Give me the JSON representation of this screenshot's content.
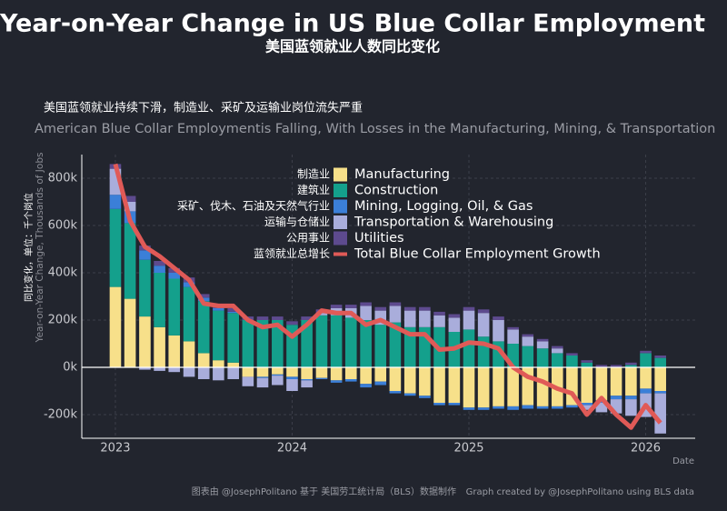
{
  "chart_data": {
    "type": "bar",
    "title": "Year-on-Year Change in US Blue Collar Employment",
    "subtitle": "美国蓝领就业人数同比变化",
    "description_zh": "美国蓝领就业持续下滑，制造业、采矿及运输业岗位流失严重",
    "description": "American Blue Collar Employmentis Falling, With Losses in the Manufacturing, Mining, & Transportation",
    "ylabel": "Year-on-Year Change, Thousands of Jobs",
    "ylabel_zh": "同比变化，单位：千个岗位",
    "xlabel": "Date",
    "footer_zh": "图表由 @JosephPolitano 基于 美国劳工统计局（BLS）数据制作",
    "footer": "Graph created by @JosephPolitano using BLS data",
    "x": [
      2023,
      2023.083,
      2023.167,
      2023.25,
      2023.333,
      2023.417,
      2023.5,
      2023.583,
      2023.667,
      2023.75,
      2023.833,
      2023.917,
      2024,
      2024.083,
      2024.167,
      2024.25,
      2024.333,
      2024.417,
      2024.5,
      2024.583,
      2024.667,
      2024.75,
      2024.833,
      2024.917,
      2025,
      2025.083,
      2025.167,
      2025.25,
      2025.333,
      2025.417,
      2025.5,
      2025.583,
      2025.667,
      2025.75,
      2025.833,
      2025.917,
      2026,
      2026.083
    ],
    "xlim": [
      2022.81,
      2026.28
    ],
    "xticks": [
      2023,
      2024,
      2025,
      2026
    ],
    "ylim": [
      -300000,
      900000
    ],
    "yticks": [
      {
        "value": -200000,
        "label": "-200k"
      },
      {
        "value": 0,
        "label": "0k"
      },
      {
        "value": 200000,
        "label": "200k"
      },
      {
        "value": 400000,
        "label": "400k"
      },
      {
        "value": 600000,
        "label": "600k"
      },
      {
        "value": 800000,
        "label": "800k"
      }
    ],
    "grid": true,
    "series": [
      {
        "name": "Manufacturing",
        "name_zh": "制造业",
        "color": "#f7e08a",
        "values": [
          340000,
          290000,
          215000,
          170000,
          135000,
          110000,
          60000,
          30000,
          20000,
          -40000,
          -40000,
          -30000,
          -40000,
          -50000,
          -45000,
          -55000,
          -50000,
          -70000,
          -60000,
          -100000,
          -110000,
          -120000,
          -150000,
          -150000,
          -170000,
          -170000,
          -165000,
          -165000,
          -160000,
          -165000,
          -165000,
          -160000,
          -150000,
          -140000,
          -120000,
          -120000,
          -90000,
          -100000
        ]
      },
      {
        "name": "Construction",
        "name_zh": "建筑业",
        "color": "#14a08c",
        "values": [
          330000,
          320000,
          240000,
          230000,
          240000,
          230000,
          220000,
          210000,
          210000,
          200000,
          200000,
          200000,
          180000,
          200000,
          220000,
          220000,
          210000,
          200000,
          180000,
          190000,
          170000,
          170000,
          170000,
          150000,
          160000,
          130000,
          110000,
          100000,
          90000,
          80000,
          60000,
          50000,
          20000,
          0,
          0,
          10000,
          60000,
          40000
        ]
      },
      {
        "name": "Mining, Logging, Oil, & Gas",
        "name_zh": "采矿、伐木、石油及天然气行业",
        "color": "#3b7fd8",
        "values": [
          60000,
          50000,
          40000,
          30000,
          25000,
          20000,
          15000,
          10000,
          5000,
          0,
          -5000,
          -5000,
          -10000,
          -5000,
          -5000,
          -10000,
          -10000,
          -15000,
          -15000,
          -10000,
          -10000,
          -10000,
          -10000,
          -10000,
          -10000,
          -10000,
          -10000,
          -15000,
          -15000,
          -10000,
          -10000,
          -10000,
          -10000,
          -10000,
          -15000,
          -15000,
          -20000,
          -10000
        ]
      },
      {
        "name": "Transportation & Warehousing",
        "name_zh": "运输与仓储业",
        "color": "#a9addb",
        "values": [
          110000,
          40000,
          -10000,
          -15000,
          -20000,
          -40000,
          -50000,
          -55000,
          -50000,
          -40000,
          -40000,
          -40000,
          -50000,
          -30000,
          10000,
          30000,
          40000,
          60000,
          60000,
          70000,
          70000,
          70000,
          50000,
          60000,
          80000,
          100000,
          90000,
          60000,
          40000,
          30000,
          20000,
          0,
          -20000,
          -40000,
          -60000,
          -70000,
          -100000,
          -170000
        ]
      },
      {
        "name": "Utilities",
        "name_zh": "公用事业",
        "color": "#5d4a8e",
        "values": [
          20000,
          25000,
          20000,
          20000,
          20000,
          20000,
          15000,
          15000,
          15000,
          15000,
          15000,
          15000,
          15000,
          15000,
          15000,
          15000,
          15000,
          15000,
          15000,
          15000,
          15000,
          15000,
          15000,
          15000,
          15000,
          15000,
          15000,
          10000,
          10000,
          10000,
          10000,
          10000,
          10000,
          10000,
          10000,
          10000,
          10000,
          10000
        ]
      },
      {
        "name": "Total Blue Collar Employment Growth",
        "name_zh": "蓝领就业总增长",
        "color": "#e05a57",
        "kind": "line",
        "values": [
          860000,
          620000,
          510000,
          470000,
          420000,
          370000,
          270000,
          260000,
          260000,
          200000,
          170000,
          180000,
          130000,
          180000,
          240000,
          230000,
          230000,
          180000,
          200000,
          170000,
          140000,
          140000,
          75000,
          80000,
          105000,
          100000,
          80000,
          0,
          -40000,
          -60000,
          -90000,
          -110000,
          -200000,
          -130000,
          -200000,
          -255000,
          -160000,
          -235000
        ]
      }
    ]
  }
}
